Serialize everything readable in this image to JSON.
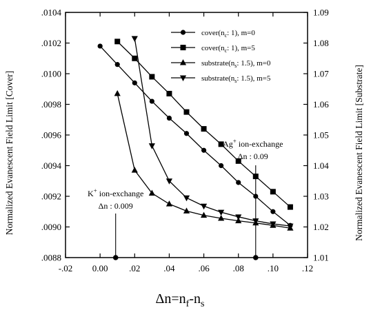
{
  "chart_data": {
    "type": "line",
    "x_tick_labels": [
      "-.02",
      "0.00",
      ".02",
      ".04",
      ".06",
      ".08",
      ".10",
      ".12"
    ],
    "x_ticks": [
      -0.02,
      0.0,
      0.02,
      0.04,
      0.06,
      0.08,
      0.1,
      0.12
    ],
    "xlim": [
      -0.02,
      0.12
    ],
    "y_left_tick_labels": [
      ".0104",
      ".0102",
      ".0100",
      ".0098",
      ".0096",
      ".0094",
      ".0092",
      ".0090",
      ".0088"
    ],
    "y_left_ticks": [
      0.0104,
      0.0102,
      0.01,
      0.0098,
      0.0096,
      0.0094,
      0.0092,
      0.009,
      0.0088
    ],
    "ylim_left": [
      0.0088,
      0.0104
    ],
    "y_right_tick_labels": [
      "1.09",
      "1.08",
      "1.07",
      "1.06",
      "1.05",
      "1.04",
      "1.03",
      "1.02",
      "1.01"
    ],
    "y_right_ticks": [
      1.09,
      1.08,
      1.07,
      1.06,
      1.05,
      1.04,
      1.03,
      1.02,
      1.01
    ],
    "ylim_right": [
      1.01,
      1.09
    ],
    "xlabel_main": "Δn=n",
    "xlabel_sub1": "f",
    "xlabel_mid": "-n",
    "xlabel_sub2": "s",
    "ylabel_left": "Normalized Evanescent Field Limit [Cover]",
    "ylabel_right": "Normalized Evanescent Field Limit [Substrate]",
    "series": [
      {
        "name": "cover(nc: 1), m=0",
        "legend_pre": "cover(n",
        "legend_sub": "c",
        "legend_post": ": 1), m=0",
        "axis": "left",
        "marker": "circle",
        "x": [
          0.0,
          0.01,
          0.02,
          0.03,
          0.04,
          0.05,
          0.06,
          0.07,
          0.08,
          0.09,
          0.1,
          0.11
        ],
        "values": [
          0.01018,
          0.01006,
          0.00994,
          0.00982,
          0.00971,
          0.00961,
          0.0095,
          0.0094,
          0.00929,
          0.0092,
          0.0091,
          0.00901
        ]
      },
      {
        "name": "cover(nc: 1), m=5",
        "legend_pre": "cover(n",
        "legend_sub": "c",
        "legend_post": ": 1), m=5",
        "axis": "left",
        "marker": "square",
        "x": [
          0.01,
          0.02,
          0.03,
          0.04,
          0.05,
          0.06,
          0.07,
          0.08,
          0.09,
          0.1,
          0.11
        ],
        "values": [
          0.01021,
          0.0101,
          0.00998,
          0.00987,
          0.00975,
          0.00964,
          0.00954,
          0.00943,
          0.00933,
          0.00923,
          0.00913
        ]
      },
      {
        "name": "substrate(ns: 1.5), m=0",
        "legend_pre": "substrate(n",
        "legend_sub": "s",
        "legend_post": ": 1.5), m=0",
        "axis": "right",
        "marker": "triangle-up",
        "x": [
          0.01,
          0.02,
          0.03,
          0.04,
          0.05,
          0.06,
          0.07,
          0.08,
          0.09,
          0.1,
          0.11
        ],
        "values": [
          1.0635,
          1.0385,
          1.031,
          1.0275,
          1.0252,
          1.0238,
          1.0228,
          1.022,
          1.0213,
          1.0205,
          1.0196
        ]
      },
      {
        "name": "substrate(ns: 1.5), m=5",
        "legend_pre": "substrate(n",
        "legend_sub": "s",
        "legend_post": ": 1.5), m=5",
        "axis": "right",
        "marker": "triangle-down",
        "x": [
          0.02,
          0.03,
          0.04,
          0.05,
          0.06,
          0.07,
          0.08,
          0.09,
          0.1,
          0.11
        ],
        "values": [
          1.0815,
          1.0465,
          1.035,
          1.0295,
          1.0268,
          1.0248,
          1.0233,
          1.022,
          1.021,
          1.0203
        ]
      }
    ],
    "annotations": [
      {
        "line1_pre": "K",
        "line1_sup": "+",
        "line1_post": " ion-exchange",
        "line2": "Δn : 0.009",
        "x": 0.009
      },
      {
        "line1_pre": "Ag",
        "line1_sup": "+",
        "line1_post": " ion-exchange",
        "line2": "Δn : 0.09",
        "x": 0.09
      }
    ]
  }
}
